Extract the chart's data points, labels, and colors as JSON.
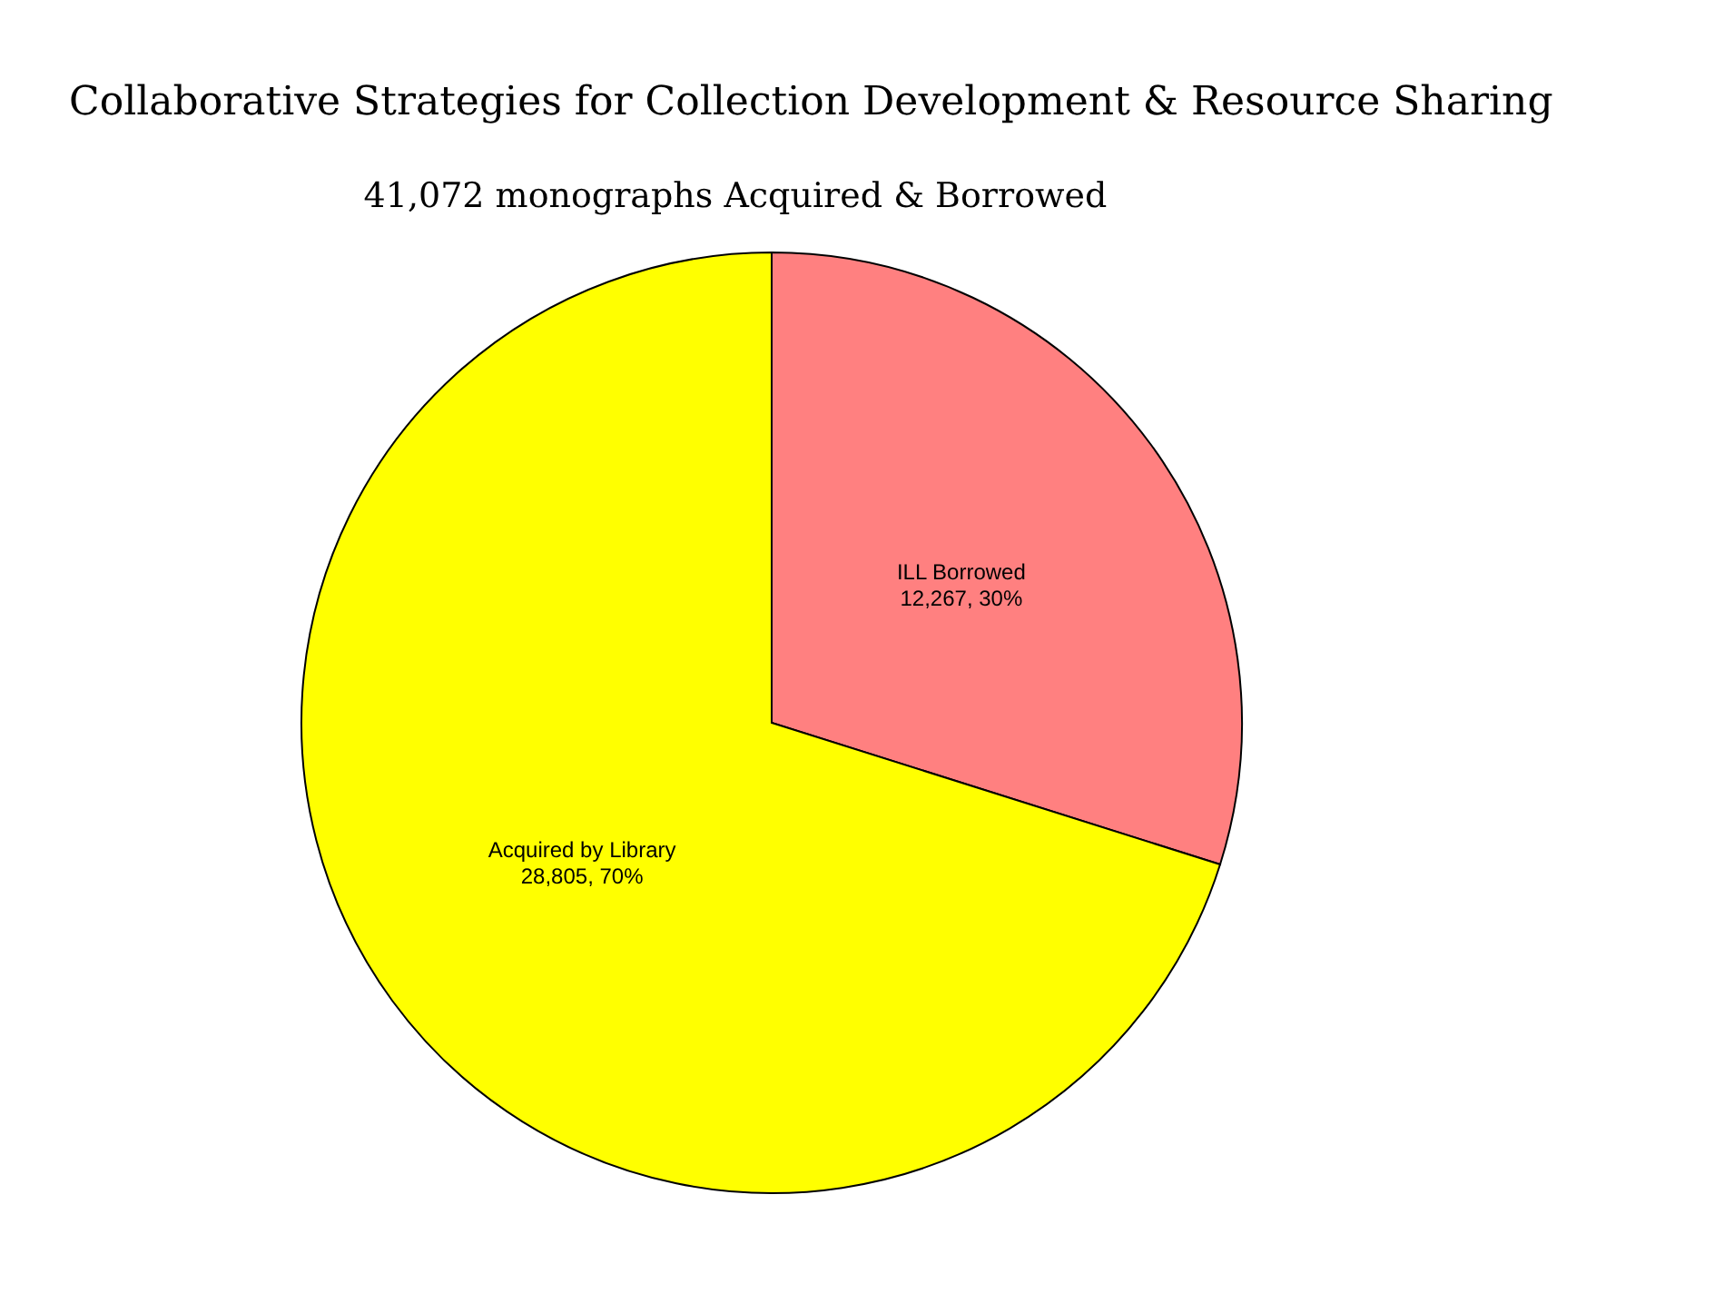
{
  "chart_data": {
    "type": "pie",
    "title": "Collaborative Strategies for Collection Development & Resource Sharing",
    "subtitle": "41,072 monographs Acquired & Borrowed",
    "categories": [
      "ILL Borrowed",
      "Acquired by Library"
    ],
    "values": [
      12267,
      28805
    ],
    "colors": [
      "#ff8080",
      "#ffff00"
    ],
    "value_labels": [
      "12,267, 30%",
      "28,805, 70%"
    ]
  }
}
